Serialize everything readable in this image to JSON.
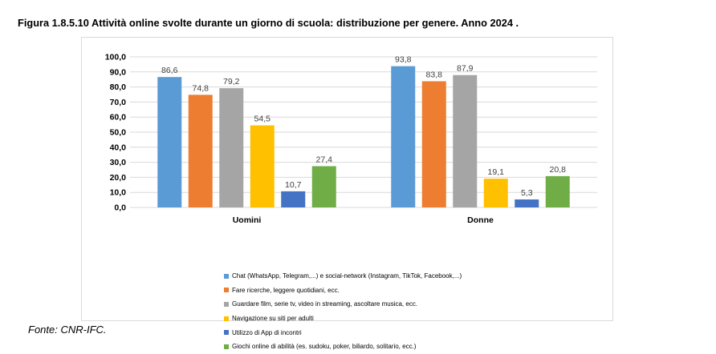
{
  "page": {
    "title": "Figura 1.8.5.10 Attività online svolte durante un giorno di scuola: distribuzione per genere. Anno 2024 .",
    "source": "Fonte: CNR-IFC."
  },
  "chart_data": {
    "type": "bar",
    "title": "",
    "xlabel": "",
    "ylabel": "",
    "categories": [
      "Uomini",
      "Donne"
    ],
    "ylim": [
      0,
      100
    ],
    "yticks": [
      "0,0",
      "10,0",
      "20,0",
      "30,0",
      "40,0",
      "50,0",
      "60,0",
      "70,0",
      "80,0",
      "90,0",
      "100,0"
    ],
    "grid": true,
    "legend_position": "bottom-left",
    "series": [
      {
        "name": "Chat (WhatsApp, Telegram,...) e social-network (Instagram, TikTok, Facebook,...)",
        "color": "#5b9bd5",
        "values": [
          86.6,
          93.8
        ],
        "labels": [
          "86,6",
          "93,8"
        ]
      },
      {
        "name": "Fare ricerche, leggere quotidiani, ecc.",
        "color": "#ed7d31",
        "values": [
          74.8,
          83.8
        ],
        "labels": [
          "74,8",
          "83,8"
        ]
      },
      {
        "name": "Guardare film, serie tv, video in streaming, ascoltare musica, ecc.",
        "color": "#a5a5a5",
        "values": [
          79.2,
          87.9
        ],
        "labels": [
          "79,2",
          "87,9"
        ]
      },
      {
        "name": "Navigazione su siti per adulti",
        "color": "#ffc000",
        "values": [
          54.5,
          19.1
        ],
        "labels": [
          "54,5",
          "19,1"
        ]
      },
      {
        "name": "Utilizzo di App di incontri",
        "color": "#4472c4",
        "values": [
          10.7,
          5.3
        ],
        "labels": [
          "10,7",
          "5,3"
        ]
      },
      {
        "name": "Giochi online di abilità (es. sudoku, poker, biliardo, solitario, ecc.)",
        "color": "#70ad47",
        "values": [
          27.4,
          20.8
        ],
        "labels": [
          "27,4",
          "20,8"
        ]
      }
    ]
  }
}
